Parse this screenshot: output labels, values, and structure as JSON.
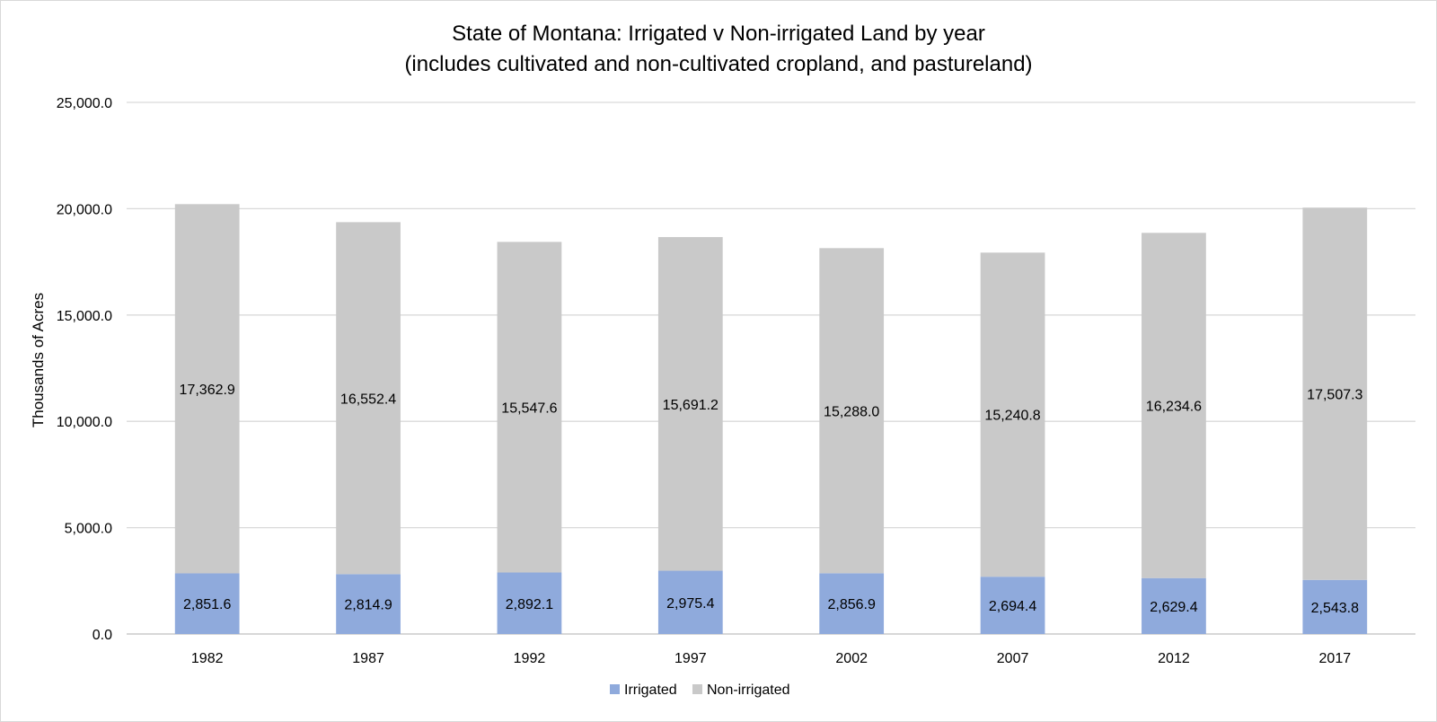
{
  "chart_data": {
    "type": "bar",
    "stacked": true,
    "title": "State of Montana: Irrigated v Non-irrigated Land by year",
    "subtitle": "(includes cultivated and non-cultivated cropland, and pastureland)",
    "xlabel": "",
    "ylabel": "Thousands of Acres",
    "ylim": [
      0,
      25000
    ],
    "yticks": [
      "0.0",
      "5,000.0",
      "10,000.0",
      "15,000.0",
      "20,000.0",
      "25,000.0"
    ],
    "grid": true,
    "legend_position": "bottom",
    "categories": [
      "1982",
      "1987",
      "1992",
      "1997",
      "2002",
      "2007",
      "2012",
      "2017"
    ],
    "series": [
      {
        "name": "Irrigated",
        "color": "#8faadc",
        "values": [
          2851.6,
          2814.9,
          2892.1,
          2975.4,
          2856.9,
          2694.4,
          2629.4,
          2543.8
        ],
        "labels": [
          "2,851.6",
          "2,814.9",
          "2,892.1",
          "2,975.4",
          "2,856.9",
          "2,694.4",
          "2,629.4",
          "2,543.8"
        ]
      },
      {
        "name": "Non-irrigated",
        "color": "#c9c9c9",
        "values": [
          17362.9,
          16552.4,
          15547.6,
          15691.2,
          15288.0,
          15240.8,
          16234.6,
          17507.3
        ],
        "labels": [
          "17,362.9",
          "16,552.4",
          "15,547.6",
          "15,691.2",
          "15,288.0",
          "15,240.8",
          "16,234.6",
          "17,507.3"
        ]
      }
    ]
  }
}
